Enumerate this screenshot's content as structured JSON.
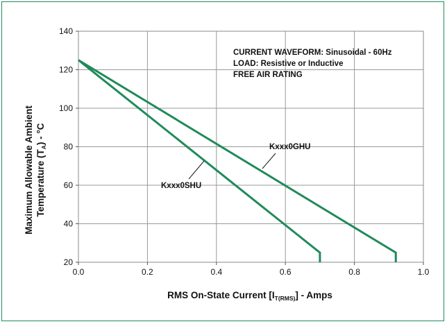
{
  "chart_data": {
    "type": "line",
    "xlabel_parts": [
      "RMS On-State Current [I",
      "T(RMS)",
      "] - Amps"
    ],
    "ylabel_line1": "Maximum Allowable Ambient",
    "ylabel_line2_parts": [
      "Temperature (T",
      "A",
      ") - °C"
    ],
    "xlim": [
      0.0,
      1.0
    ],
    "ylim": [
      20,
      140
    ],
    "x_ticks": [
      "0.0",
      "0.2",
      "0.4",
      "0.6",
      "0.8",
      "1.0"
    ],
    "x_tick_values": [
      0.0,
      0.2,
      0.4,
      0.6,
      0.8,
      1.0
    ],
    "y_ticks": [
      "20",
      "40",
      "60",
      "80",
      "100",
      "120",
      "140"
    ],
    "y_tick_values": [
      20,
      40,
      60,
      80,
      100,
      120,
      140
    ],
    "grid": true,
    "annotation": [
      "CURRENT WAVEFORM: Sinusoidal - 60Hz",
      "LOAD: Resistive or Inductive",
      "FREE AIR RATING"
    ],
    "series": [
      {
        "name": "Kxxx0GHU",
        "color": "#1f8a5a",
        "x": [
          0.0,
          0.92,
          0.92
        ],
        "y": [
          125,
          25,
          20
        ]
      },
      {
        "name": "Kxxx0SHU",
        "color": "#1f8a5a",
        "x": [
          0.0,
          0.7,
          0.7
        ],
        "y": [
          125,
          25,
          20
        ]
      }
    ]
  }
}
